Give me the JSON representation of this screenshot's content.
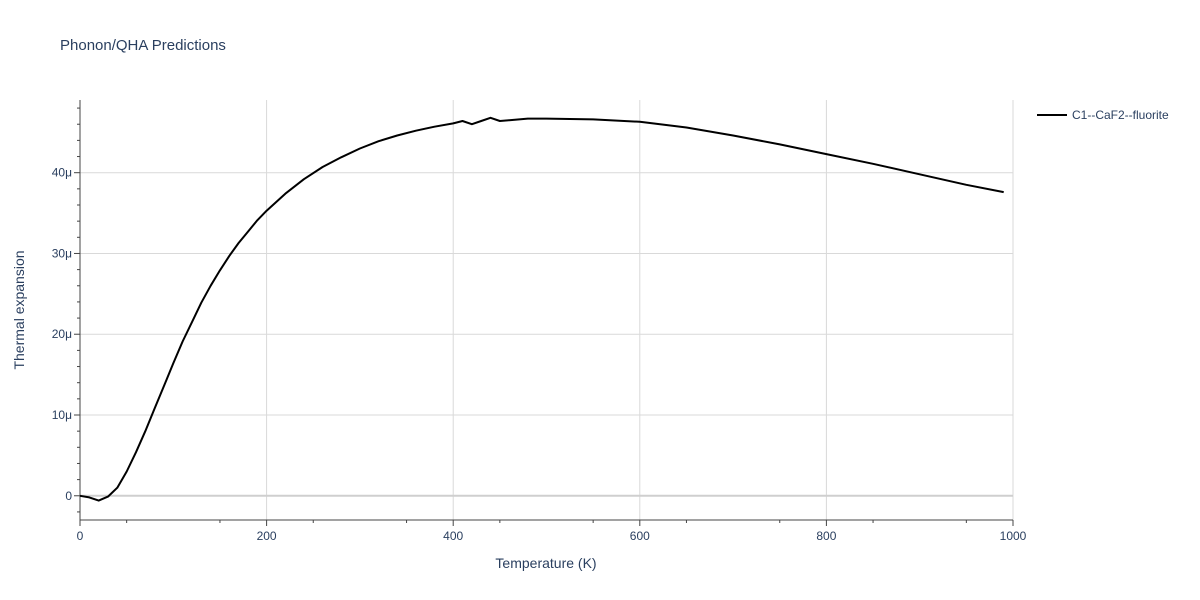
{
  "chart_data": {
    "type": "line",
    "title": "Phonon/QHA Predictions",
    "xlabel": "Temperature (K)",
    "ylabel": "Thermal expansion",
    "xlim": [
      0,
      1000
    ],
    "ylim": [
      -3e-06,
      4.9e-05
    ],
    "xticks": [
      0,
      200,
      400,
      600,
      800,
      1000
    ],
    "xtick_labels": [
      "0",
      "200",
      "400",
      "600",
      "800",
      "1000"
    ],
    "yticks": [
      0,
      1e-05,
      2e-05,
      3e-05,
      4e-05
    ],
    "ytick_labels": [
      "0",
      "10μ",
      "20μ",
      "30μ",
      "40μ"
    ],
    "grid": true,
    "legend_position": "top-right, outside plot",
    "series": [
      {
        "name": "C1--CaF2--fluorite",
        "color": "#000000",
        "x": [
          0,
          10,
          20,
          30,
          40,
          50,
          60,
          70,
          80,
          90,
          100,
          110,
          120,
          130,
          140,
          150,
          160,
          170,
          180,
          190,
          200,
          220,
          240,
          260,
          280,
          300,
          320,
          340,
          360,
          380,
          400,
          410,
          420,
          430,
          440,
          450,
          460,
          480,
          500,
          550,
          600,
          650,
          700,
          750,
          800,
          850,
          900,
          950,
          990
        ],
        "y": [
          0,
          -2e-07,
          -6e-07,
          -1e-07,
          1e-06,
          3e-06,
          5.4e-06,
          8e-06,
          1.08e-05,
          1.36e-05,
          1.64e-05,
          1.91e-05,
          2.15e-05,
          2.39e-05,
          2.6e-05,
          2.79e-05,
          2.97e-05,
          3.13e-05,
          3.27e-05,
          3.41e-05,
          3.53e-05,
          3.74e-05,
          3.92e-05,
          4.07e-05,
          4.19e-05,
          4.3e-05,
          4.39e-05,
          4.46e-05,
          4.52e-05,
          4.57e-05,
          4.61e-05,
          4.64e-05,
          4.6e-05,
          4.64e-05,
          4.68e-05,
          4.64e-05,
          4.65e-05,
          4.67e-05,
          4.67e-05,
          4.66e-05,
          4.63e-05,
          4.56e-05,
          4.46e-05,
          4.35e-05,
          4.23e-05,
          4.11e-05,
          3.98e-05,
          3.85e-05,
          3.76e-05
        ]
      }
    ]
  }
}
